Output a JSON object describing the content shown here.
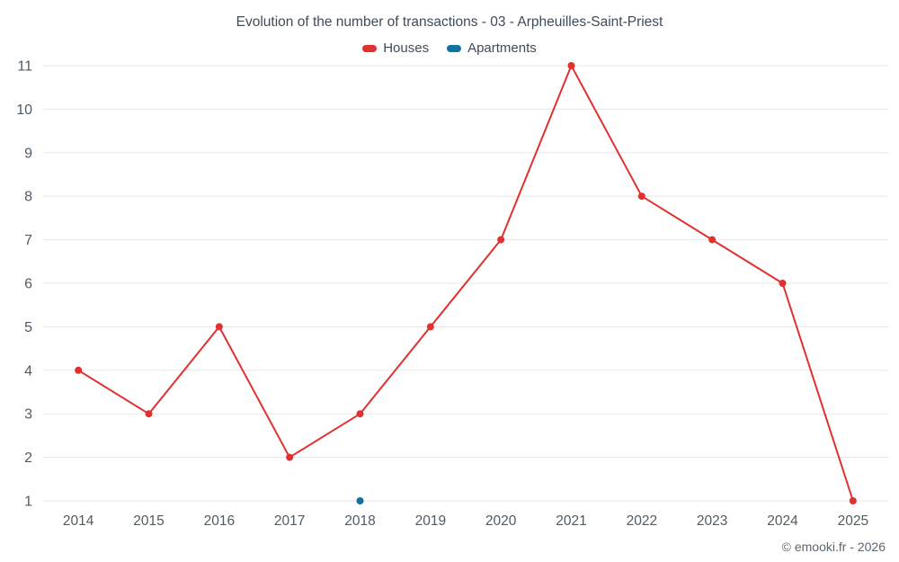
{
  "footer": "© emooki.fr - 2026",
  "legend": {
    "items": [
      {
        "label": "Houses",
        "color": "#e0312f"
      },
      {
        "label": "Apartments",
        "color": "#10739e"
      }
    ]
  },
  "chart_data": {
    "type": "line",
    "title": "Evolution of the number of transactions - 03 - Arpheuilles-Saint-Priest",
    "categories": [
      "2014",
      "2015",
      "2016",
      "2017",
      "2018",
      "2019",
      "2020",
      "2021",
      "2022",
      "2023",
      "2024",
      "2025"
    ],
    "series": [
      {
        "name": "Houses",
        "color": "#e0312f",
        "values": [
          4,
          3,
          5,
          2,
          3,
          5,
          7,
          11,
          8,
          7,
          6,
          1
        ]
      },
      {
        "name": "Apartments",
        "color": "#10739e",
        "values": [
          null,
          null,
          null,
          null,
          1,
          null,
          null,
          null,
          null,
          null,
          null,
          null
        ]
      }
    ],
    "xlabel": "",
    "ylabel": "",
    "ylim": [
      1,
      11
    ],
    "yticks": [
      1,
      2,
      3,
      4,
      5,
      6,
      7,
      8,
      9,
      10,
      11
    ],
    "grid": true,
    "grid_color": "#e7e7e7",
    "axis_label_color": "#4e5b66",
    "legend_position": "top"
  }
}
